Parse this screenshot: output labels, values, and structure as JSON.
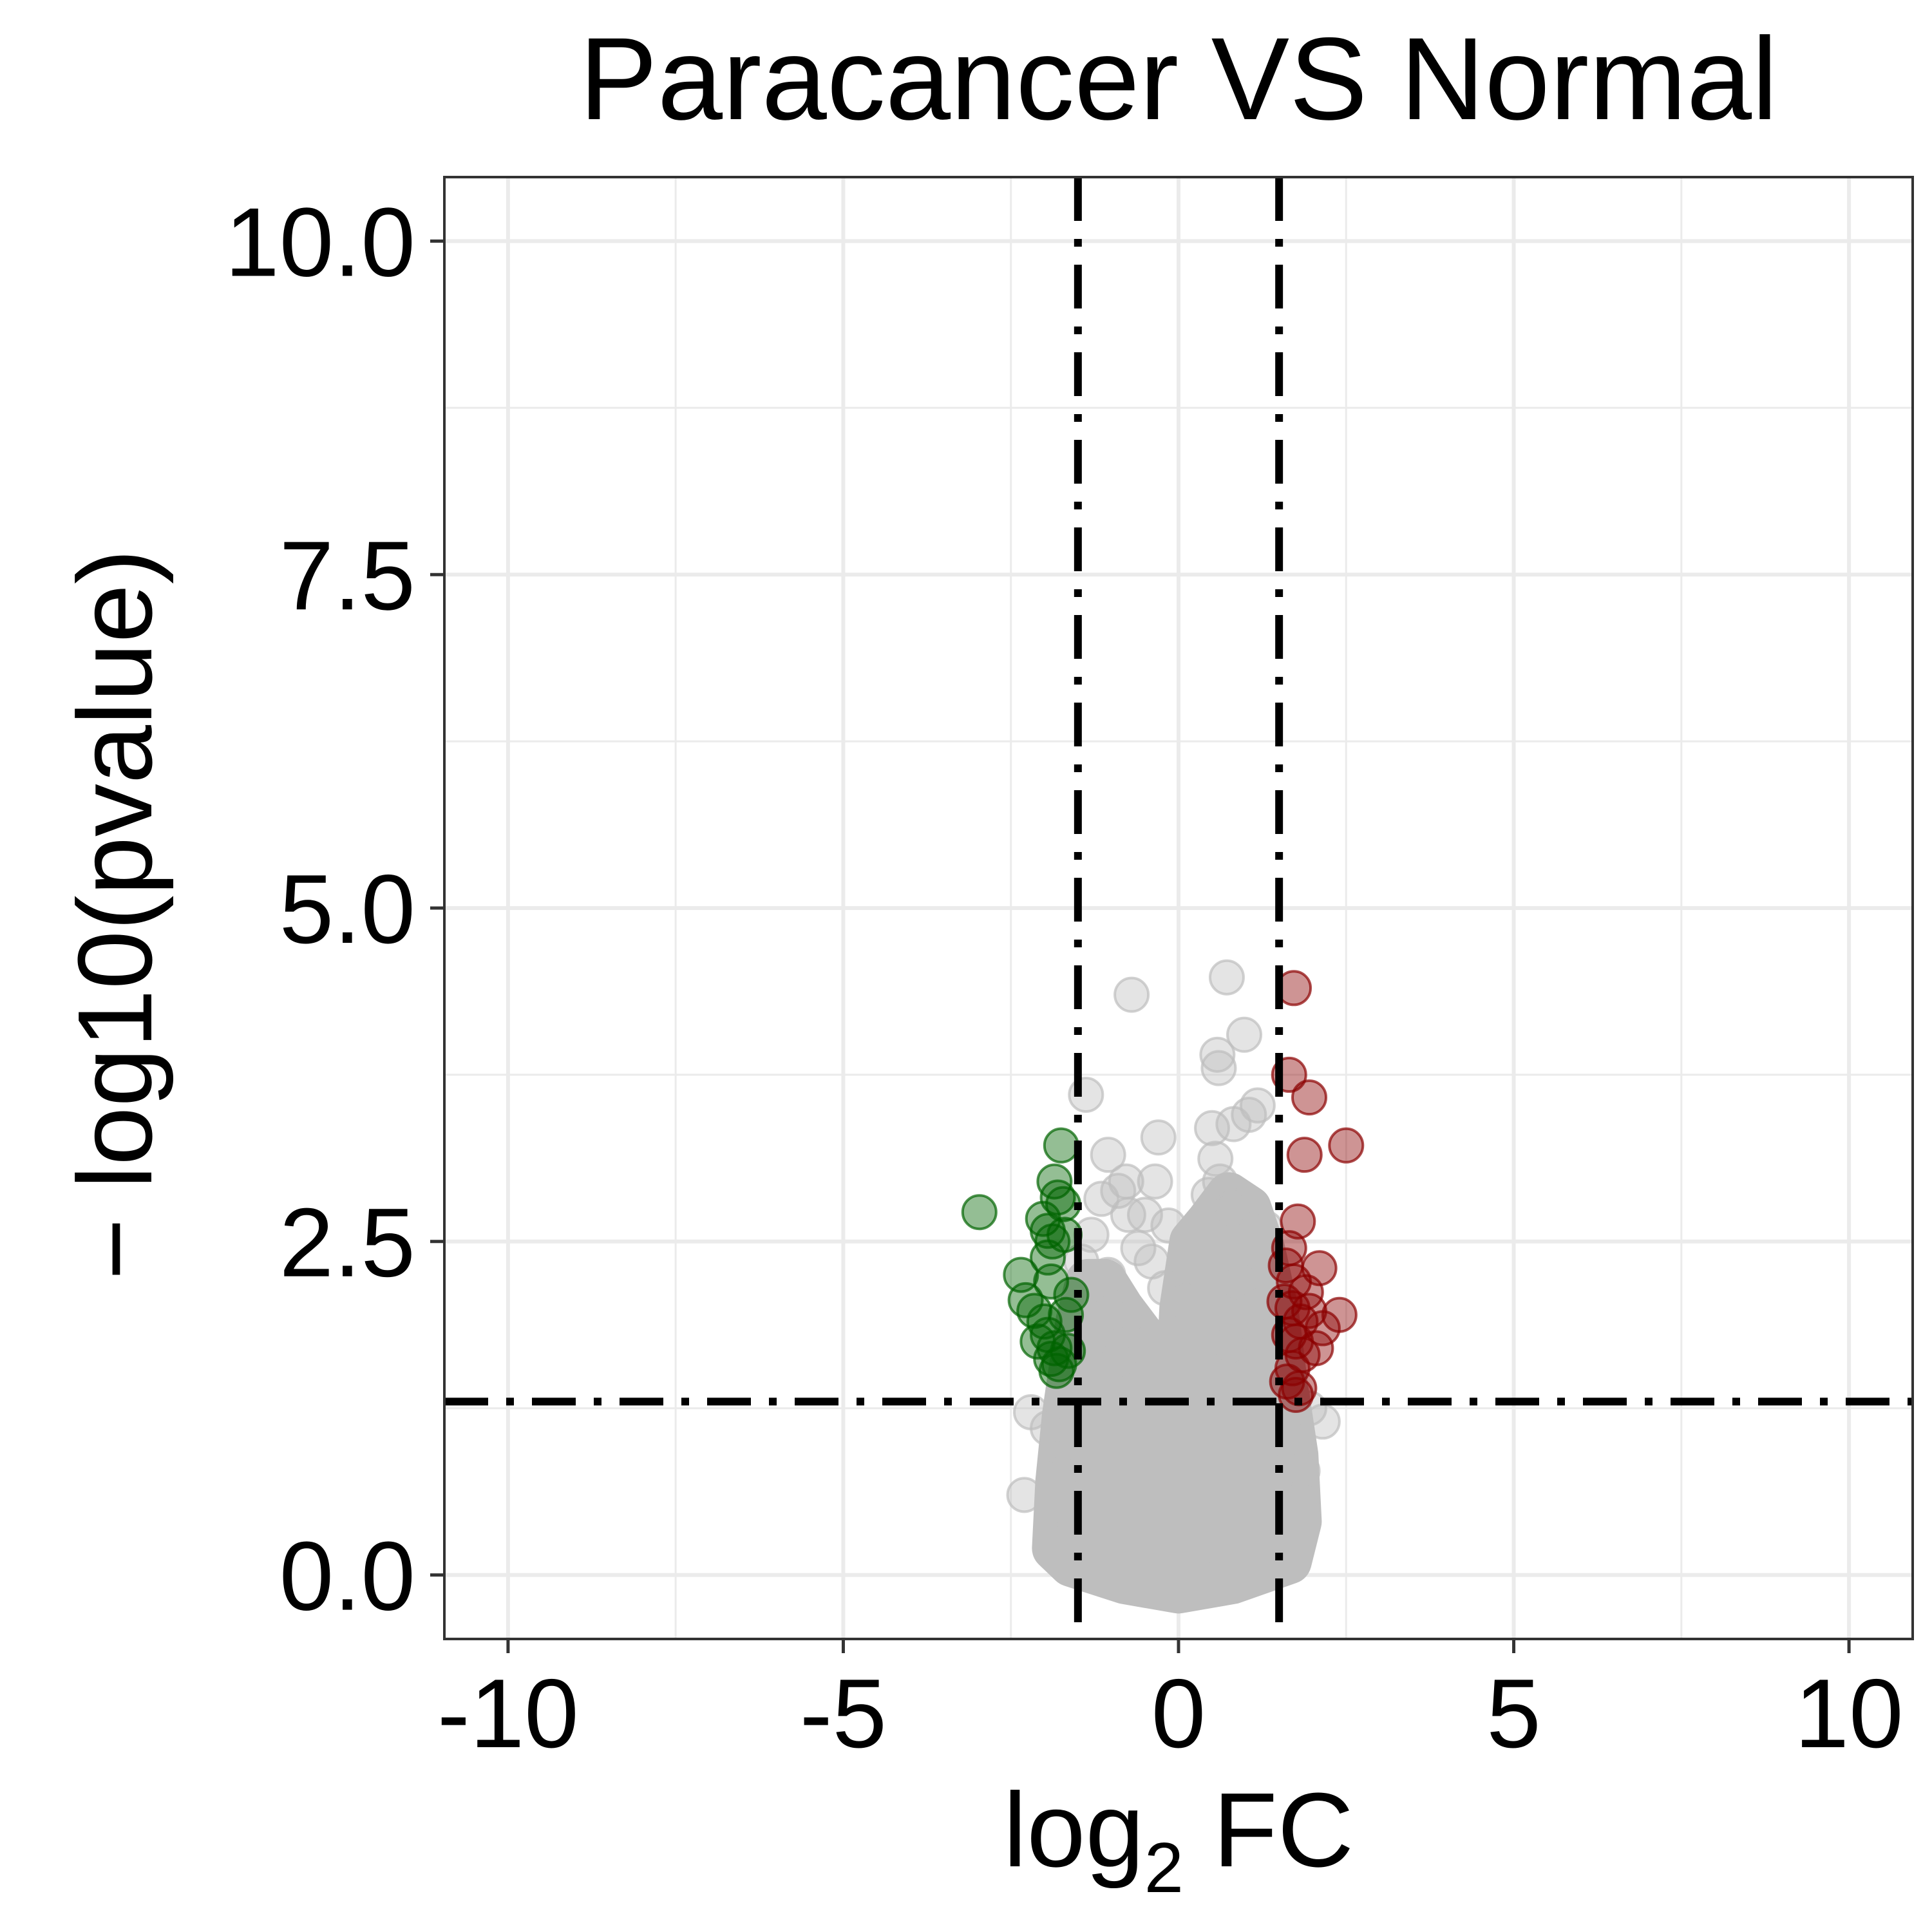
{
  "chart_data": {
    "type": "scatter",
    "title": "Paracancer VS Normal",
    "xlabel": {
      "base": "log",
      "subscript": "2",
      "suffix": " FC"
    },
    "ylabel": "− log10(pvalue)",
    "xlim": [
      -10.95,
      10.95
    ],
    "ylim": [
      -0.48,
      10.48
    ],
    "xticks": [
      {
        "value": -10,
        "label": "-10"
      },
      {
        "value": -5,
        "label": "-5"
      },
      {
        "value": 0,
        "label": "0"
      },
      {
        "value": 5,
        "label": "5"
      },
      {
        "value": 10,
        "label": "10"
      }
    ],
    "yticks": [
      {
        "value": 0,
        "label": "0.0"
      },
      {
        "value": 2.5,
        "label": "2.5"
      },
      {
        "value": 5,
        "label": "5.0"
      },
      {
        "value": 7.5,
        "label": "7.5"
      },
      {
        "value": 10,
        "label": "10.0"
      }
    ],
    "grid": true,
    "thresholds": {
      "log2fc": [
        -1.5,
        1.5
      ],
      "neg_log10_p": 1.3
    },
    "colors": {
      "down": "#006400",
      "up": "#8b0000",
      "ns": "#bebebe"
    },
    "series": [
      {
        "group": "down",
        "points": [
          [
            -2.97,
            2.72
          ],
          [
            -1.75,
            3.22
          ],
          [
            -1.85,
            2.95
          ],
          [
            -1.8,
            2.83
          ],
          [
            -1.72,
            2.78
          ],
          [
            -2.02,
            2.67
          ],
          [
            -1.95,
            2.58
          ],
          [
            -1.88,
            2.5
          ],
          [
            -2.35,
            2.25
          ],
          [
            -2.28,
            2.06
          ],
          [
            -1.95,
            2.38
          ],
          [
            -1.9,
            2.2
          ],
          [
            -2.15,
            1.98
          ],
          [
            -2.0,
            1.9
          ],
          [
            -1.95,
            1.8
          ],
          [
            -2.1,
            1.75
          ],
          [
            -1.85,
            1.7
          ],
          [
            -1.9,
            1.62
          ],
          [
            -1.78,
            1.58
          ],
          [
            -1.82,
            1.53
          ],
          [
            -1.65,
            1.68
          ],
          [
            -1.7,
            2.55
          ],
          [
            -1.6,
            2.1
          ],
          [
            -1.68,
            1.95
          ]
        ]
      },
      {
        "group": "up",
        "points": [
          [
            1.72,
            4.4
          ],
          [
            1.65,
            3.75
          ],
          [
            1.95,
            3.58
          ],
          [
            2.5,
            3.22
          ],
          [
            1.88,
            3.15
          ],
          [
            1.78,
            2.65
          ],
          [
            1.65,
            2.45
          ],
          [
            2.1,
            2.3
          ],
          [
            1.6,
            2.32
          ],
          [
            1.72,
            2.2
          ],
          [
            1.9,
            2.12
          ],
          [
            1.58,
            2.05
          ],
          [
            1.7,
            2.0
          ],
          [
            1.95,
            1.98
          ],
          [
            2.4,
            1.95
          ],
          [
            1.82,
            1.9
          ],
          [
            2.15,
            1.85
          ],
          [
            1.65,
            1.8
          ],
          [
            1.75,
            1.75
          ],
          [
            2.05,
            1.7
          ],
          [
            1.85,
            1.65
          ],
          [
            1.7,
            1.55
          ],
          [
            1.62,
            1.45
          ],
          [
            1.8,
            1.4
          ],
          [
            1.75,
            1.35
          ]
        ]
      },
      {
        "group": "ns",
        "points": [
          [
            0.72,
            4.48
          ],
          [
            -0.7,
            4.35
          ],
          [
            0.98,
            4.05
          ],
          [
            0.58,
            3.9
          ],
          [
            0.6,
            3.8
          ],
          [
            -1.38,
            3.6
          ],
          [
            0.5,
            3.35
          ],
          [
            0.82,
            3.38
          ],
          [
            1.05,
            3.45
          ],
          [
            1.18,
            3.52
          ],
          [
            -0.3,
            3.28
          ],
          [
            -1.05,
            3.15
          ],
          [
            -0.78,
            2.95
          ],
          [
            -0.9,
            2.88
          ],
          [
            -0.35,
            2.95
          ],
          [
            0.55,
            3.12
          ],
          [
            0.62,
            2.95
          ],
          [
            -0.75,
            2.7
          ],
          [
            -0.5,
            2.7
          ],
          [
            -1.3,
            2.55
          ],
          [
            -1.15,
            2.82
          ],
          [
            -0.6,
            2.45
          ],
          [
            -0.4,
            2.35
          ],
          [
            -1.05,
            2.25
          ],
          [
            -1.45,
            2.35
          ],
          [
            -1.38,
            2.05
          ],
          [
            -1.12,
            1.95
          ],
          [
            -1.3,
            1.75
          ],
          [
            1.3,
            2.6
          ],
          [
            1.2,
            2.4
          ],
          [
            1.35,
            2.1
          ],
          [
            1.45,
            1.55
          ],
          [
            1.42,
            1.35
          ],
          [
            -1.4,
            1.48
          ],
          [
            2.15,
            1.15
          ],
          [
            1.95,
            1.25
          ],
          [
            -2.2,
            1.22
          ],
          [
            -1.95,
            1.1
          ],
          [
            -2.3,
            0.6
          ],
          [
            -1.75,
            0.75
          ],
          [
            1.72,
            0.95
          ],
          [
            1.85,
            0.78
          ],
          [
            1.62,
            0.55
          ],
          [
            -1.6,
            0.45
          ],
          [
            0.45,
            2.85
          ],
          [
            0.8,
            2.75
          ],
          [
            -0.15,
            2.62
          ],
          [
            0.3,
            2.3
          ],
          [
            0.9,
            2.2
          ],
          [
            -0.2,
            2.15
          ],
          [
            0.1,
            2.05
          ],
          [
            1.1,
            2.0
          ],
          [
            -0.7,
            1.95
          ],
          [
            -0.9,
            1.62
          ],
          [
            0.75,
            1.72
          ]
        ],
        "dense_envelope": {
          "bottom_y": -0.12,
          "boundary": [
            [
              -1.85,
              0.2
            ],
            [
              -1.8,
              0.7
            ],
            [
              -1.7,
              1.2
            ],
            [
              -1.6,
              1.55
            ],
            [
              -1.5,
              1.9
            ],
            [
              -1.35,
              2.2
            ],
            [
              -1.1,
              2.2
            ],
            [
              -0.85,
              2.0
            ],
            [
              -0.55,
              1.8
            ],
            [
              -0.2,
              1.6
            ],
            [
              0.0,
              1.5
            ],
            [
              0.05,
              2.0
            ],
            [
              0.2,
              2.5
            ],
            [
              0.45,
              2.65
            ],
            [
              0.75,
              2.85
            ],
            [
              1.05,
              2.75
            ],
            [
              1.25,
              2.45
            ],
            [
              1.45,
              2.0
            ],
            [
              1.6,
              1.4
            ],
            [
              1.75,
              0.9
            ],
            [
              1.8,
              0.4
            ],
            [
              1.65,
              0.1
            ],
            [
              0.8,
              -0.05
            ],
            [
              0.0,
              -0.12
            ],
            [
              -0.8,
              -0.05
            ],
            [
              -1.6,
              0.08
            ]
          ]
        }
      }
    ]
  }
}
